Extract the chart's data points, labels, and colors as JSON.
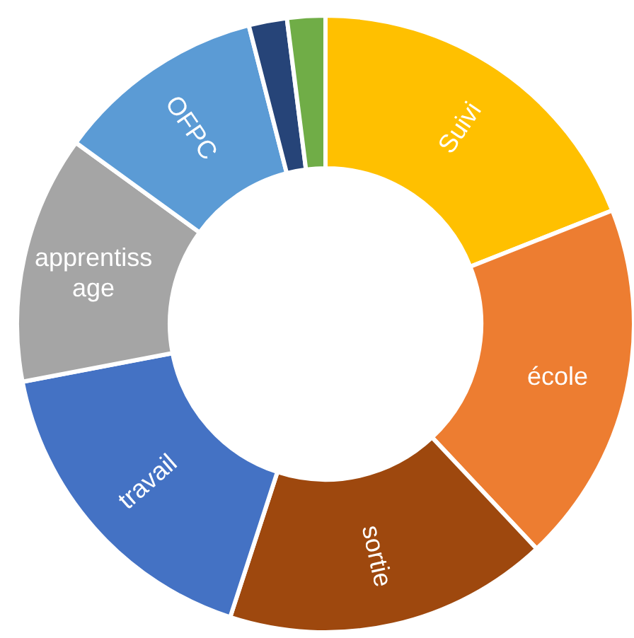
{
  "chart_data": {
    "type": "donut",
    "categories": [
      "Suivi",
      "école",
      "sortie",
      "travail",
      "apprentissage",
      "OFPC",
      null,
      null
    ],
    "values": [
      19,
      19,
      17,
      17,
      13,
      11,
      2,
      2
    ],
    "colors": [
      "#ffc000",
      "#ed7d31",
      "#9e480e",
      "#4472c4",
      "#a5a5a5",
      "#5b9bd5",
      "#264478",
      "#70ad47"
    ]
  }
}
